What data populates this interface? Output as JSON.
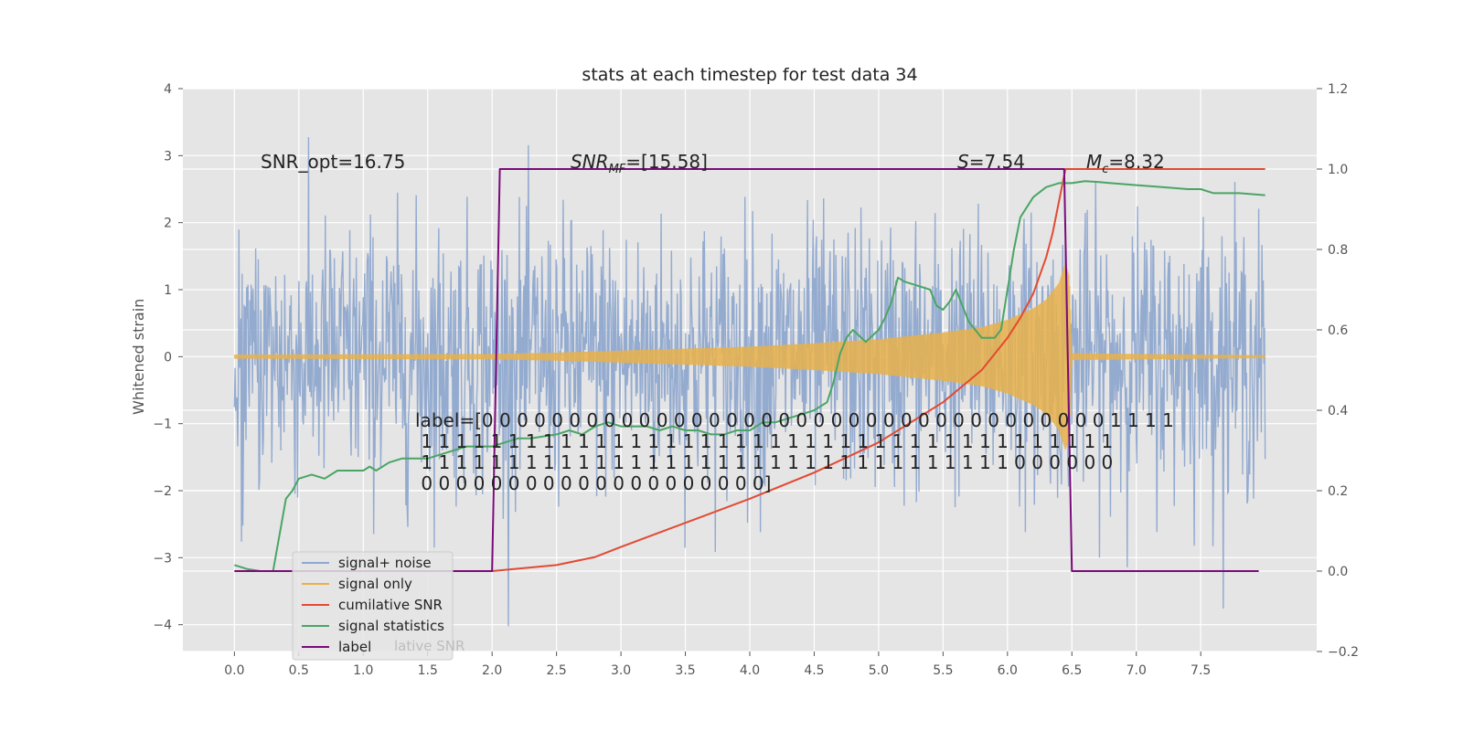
{
  "chart_data": {
    "type": "line",
    "title": "stats at each timestep for test data 34",
    "xlabel": "",
    "ylabel": "Whitened strain",
    "y2label": "",
    "xlim": [
      -0.4,
      8.4
    ],
    "ylim": [
      -4.4,
      4.0
    ],
    "y2lim": [
      -0.2,
      1.2
    ],
    "x_ticks": [
      0.0,
      0.5,
      1.0,
      1.5,
      2.0,
      2.5,
      3.0,
      3.5,
      4.0,
      4.5,
      5.0,
      5.5,
      6.0,
      6.5,
      7.0,
      7.5
    ],
    "x_tick_labels": [
      "0.0",
      "0.5",
      "1.0",
      "1.5",
      "2.0",
      "2.5",
      "3.0",
      "3.5",
      "4.0",
      "4.5",
      "5.0",
      "5.5",
      "6.0",
      "6.5",
      "7.0",
      "7.5"
    ],
    "y_ticks": [
      4,
      3,
      2,
      1,
      0,
      -1,
      -2,
      -3,
      -4
    ],
    "y_tick_labels": [
      "4",
      "3",
      "2",
      "1",
      "0",
      "−1",
      "−2",
      "−3",
      "−4"
    ],
    "y2_ticks": [
      1.2,
      1.0,
      0.8,
      0.6,
      0.4,
      0.2,
      0.0,
      -0.2
    ],
    "y2_tick_labels": [
      "1.2",
      "1.0",
      "0.8",
      "0.6",
      "0.4",
      "0.2",
      "0.0",
      "−0.2"
    ],
    "grid": true,
    "legend_position": "lower-left",
    "colors": {
      "signal_noise": "#8fa8cf",
      "signal_only": "#e8b04a",
      "cumulative_snr": "#e24a33",
      "signal_statistics": "#4aa564",
      "label": "#7a0a7a",
      "background": "#e5e5e5"
    },
    "series": [
      {
        "name": "signal+ noise",
        "key": "signal_noise",
        "axis": "left",
        "kind": "noise",
        "x_range": [
          0.0,
          8.0
        ],
        "std": 1.0,
        "y_min": -4.05,
        "y_max": 3.65
      },
      {
        "name": "signal only",
        "key": "signal_only",
        "axis": "left",
        "kind": "chirp",
        "x_range": [
          0.0,
          8.0
        ],
        "merger_time": 6.48,
        "envelope": {
          "x": [
            0.0,
            2.0,
            2.5,
            3.0,
            3.5,
            4.0,
            4.5,
            5.0,
            5.5,
            5.8,
            6.0,
            6.2,
            6.3,
            6.4,
            6.45,
            6.48,
            6.5,
            8.0
          ],
          "amp": [
            0.03,
            0.04,
            0.06,
            0.09,
            0.12,
            0.15,
            0.2,
            0.26,
            0.36,
            0.44,
            0.55,
            0.72,
            0.85,
            1.1,
            1.4,
            1.2,
            0.05,
            0.02
          ]
        }
      },
      {
        "name": "cumilative SNR",
        "key": "cumulative_snr",
        "axis": "right",
        "x": [
          2.0,
          2.5,
          2.8,
          3.0,
          3.5,
          4.0,
          4.5,
          5.0,
          5.5,
          5.8,
          6.0,
          6.1,
          6.2,
          6.3,
          6.35,
          6.4,
          6.45,
          6.5,
          7.0,
          7.5,
          8.0
        ],
        "values": [
          0.0,
          0.015,
          0.035,
          0.06,
          0.12,
          0.18,
          0.245,
          0.32,
          0.42,
          0.5,
          0.58,
          0.63,
          0.69,
          0.78,
          0.84,
          0.92,
          1.0,
          1.0,
          1.0,
          1.0,
          1.0
        ]
      },
      {
        "name": "signal statistics",
        "key": "signal_statistics",
        "axis": "right",
        "x": [
          0.0,
          0.05,
          0.1,
          0.2,
          0.3,
          0.4,
          0.45,
          0.5,
          0.6,
          0.7,
          0.75,
          0.8,
          0.85,
          0.9,
          1.0,
          1.05,
          1.1,
          1.2,
          1.3,
          1.4,
          1.5,
          1.6,
          1.7,
          1.8,
          1.9,
          2.0,
          2.1,
          2.2,
          2.3,
          2.5,
          2.6,
          2.7,
          2.8,
          2.9,
          3.0,
          3.1,
          3.2,
          3.3,
          3.4,
          3.5,
          3.6,
          3.7,
          3.8,
          3.9,
          4.0,
          4.1,
          4.2,
          4.3,
          4.4,
          4.5,
          4.6,
          4.65,
          4.7,
          4.75,
          4.8,
          4.9,
          5.0,
          5.05,
          5.1,
          5.15,
          5.2,
          5.3,
          5.4,
          5.45,
          5.5,
          5.55,
          5.6,
          5.65,
          5.7,
          5.75,
          5.8,
          5.9,
          5.95,
          6.0,
          6.05,
          6.1,
          6.2,
          6.3,
          6.4,
          6.5,
          6.6,
          6.7,
          6.8,
          7.0,
          7.2,
          7.4,
          7.5,
          7.6,
          7.8,
          8.0
        ],
        "values": [
          0.015,
          0.01,
          0.005,
          0.0,
          0.0,
          0.18,
          0.2,
          0.23,
          0.24,
          0.23,
          0.24,
          0.25,
          0.25,
          0.25,
          0.25,
          0.26,
          0.25,
          0.27,
          0.28,
          0.28,
          0.28,
          0.29,
          0.3,
          0.31,
          0.31,
          0.31,
          0.32,
          0.33,
          0.33,
          0.34,
          0.35,
          0.34,
          0.36,
          0.37,
          0.36,
          0.36,
          0.36,
          0.35,
          0.36,
          0.35,
          0.35,
          0.34,
          0.34,
          0.35,
          0.35,
          0.37,
          0.37,
          0.38,
          0.39,
          0.4,
          0.42,
          0.47,
          0.54,
          0.58,
          0.6,
          0.57,
          0.6,
          0.63,
          0.67,
          0.73,
          0.72,
          0.71,
          0.7,
          0.66,
          0.65,
          0.67,
          0.7,
          0.66,
          0.62,
          0.6,
          0.58,
          0.58,
          0.6,
          0.7,
          0.8,
          0.88,
          0.93,
          0.955,
          0.965,
          0.965,
          0.97,
          0.968,
          0.965,
          0.96,
          0.955,
          0.95,
          0.95,
          0.94,
          0.94,
          0.935
        ]
      },
      {
        "name": "label",
        "key": "label",
        "axis": "right",
        "x": [
          0.0,
          2.0,
          2.06,
          6.44,
          6.5,
          7.95
        ],
        "values": [
          0.0,
          0.0,
          1.0,
          1.0,
          0.0,
          0.0
        ]
      }
    ],
    "annotations": {
      "snr_opt": "SNR_opt=16.75",
      "snr_mf_main": "SNR",
      "snr_mf_sub": "MF",
      "snr_mf_value": "=[15.58]",
      "s_stat_symbol": "S",
      "s_stat_value": "=7.54",
      "mc_symbol": "M",
      "mc_sub": "c",
      "mc_value": "=8.32"
    },
    "label_text": [
      "label=[0 0 0 0 0 0 0 0 0 0 0 0 0 0 0 0 0 0 0 0 0 0 0 0 0 0 0 0 0 0 0 0 0 0 0 0 1 1 1 1",
      " 1 1 1 1 1 1 1 1 1 1 1 1 1 1 1 1 1 1 1 1 1 1 1 1 1 1 1 1 1 1 1 1 1 1 1 1 1 1 1 1",
      " 1 1 1 1 1 1 1 1 1 1 1 1 1 1 1 1 1 1 1 1 1 1 1 1 1 1 1 1 1 1 1 1 1 1 0 0 0 0 0 0",
      " 0 0 0 0 0 0 0 0 0 0 0 0 0 0 0 0 0 0 0 0]"
    ],
    "legend": {
      "entries": [
        "signal+ noise",
        "signal only",
        "cumilative SNR",
        "signal statistics",
        "label"
      ],
      "ghost_text": "lative SNR"
    }
  }
}
